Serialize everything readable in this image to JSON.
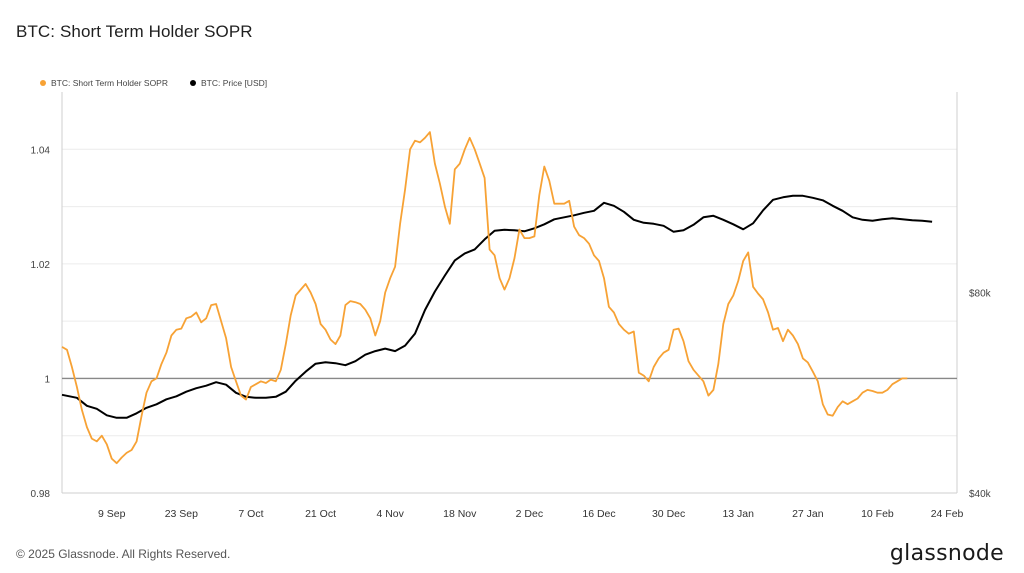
{
  "title": "BTC: Short Term Holder SOPR",
  "footer": "© 2025 Glassnode. All Rights Reserved.",
  "brand": "glassnode",
  "colors": {
    "sopr": "#f7a235",
    "price": "#000000",
    "baseline": "#888888",
    "grid": "#ececec",
    "axis": "#cfcfcf"
  },
  "chart_data": {
    "type": "line",
    "legend": [
      {
        "name": "BTC: Short Term Holder SOPR",
        "color": "#f7a235"
      },
      {
        "name": "BTC: Price [USD]",
        "color": "#000000"
      }
    ],
    "legend_position": "top-left",
    "x_ticks": [
      "9 Sep",
      "23 Sep",
      "7 Oct",
      "21 Oct",
      "4 Nov",
      "18 Nov",
      "2 Dec",
      "16 Dec",
      "30 Dec",
      "13 Jan",
      "27 Jan",
      "10 Feb",
      "24 Feb"
    ],
    "x_range": [
      "2024-08-30",
      "2025-02-26"
    ],
    "y_left": {
      "ticks": [
        "0.98",
        "1",
        "1.02",
        "1.04"
      ],
      "values": [
        0.98,
        1.0,
        1.02,
        1.04
      ],
      "range": [
        0.98,
        1.05
      ]
    },
    "y_right": {
      "ticks": [
        "$40k",
        "$80k"
      ],
      "values": [
        40000,
        80000
      ],
      "range": [
        40000,
        120000
      ]
    },
    "baseline": 1.0,
    "grid": true,
    "series": [
      {
        "name": "BTC: Short Term Holder SOPR",
        "axis": "left",
        "points": [
          [
            "2024-08-30",
            1.0055
          ],
          [
            "2024-08-31",
            1.005
          ],
          [
            "2024-09-01",
            1.002
          ],
          [
            "2024-09-02",
            0.9985
          ],
          [
            "2024-09-03",
            0.9945
          ],
          [
            "2024-09-04",
            0.9915
          ],
          [
            "2024-09-05",
            0.9895
          ],
          [
            "2024-09-06",
            0.989
          ],
          [
            "2024-09-07",
            0.99
          ],
          [
            "2024-09-08",
            0.9885
          ],
          [
            "2024-09-09",
            0.986
          ],
          [
            "2024-09-10",
            0.9852
          ],
          [
            "2024-09-11",
            0.9862
          ],
          [
            "2024-09-12",
            0.987
          ],
          [
            "2024-09-13",
            0.9875
          ],
          [
            "2024-09-14",
            0.989
          ],
          [
            "2024-09-15",
            0.9935
          ],
          [
            "2024-09-16",
            0.9975
          ],
          [
            "2024-09-17",
            0.9995
          ],
          [
            "2024-09-18",
            1.0
          ],
          [
            "2024-09-19",
            1.0025
          ],
          [
            "2024-09-20",
            1.0045
          ],
          [
            "2024-09-21",
            1.0075
          ],
          [
            "2024-09-22",
            1.0085
          ],
          [
            "2024-09-23",
            1.0087
          ],
          [
            "2024-09-24",
            1.0105
          ],
          [
            "2024-09-25",
            1.0108
          ],
          [
            "2024-09-26",
            1.0115
          ],
          [
            "2024-09-27",
            1.0098
          ],
          [
            "2024-09-28",
            1.0105
          ],
          [
            "2024-09-29",
            1.0128
          ],
          [
            "2024-09-30",
            1.013
          ],
          [
            "2024-10-01",
            1.01
          ],
          [
            "2024-10-02",
            1.007
          ],
          [
            "2024-10-03",
            1.002
          ],
          [
            "2024-10-04",
            0.9995
          ],
          [
            "2024-10-05",
            0.997
          ],
          [
            "2024-10-06",
            0.9963
          ],
          [
            "2024-10-07",
            0.9985
          ],
          [
            "2024-10-08",
            0.999
          ],
          [
            "2024-10-09",
            0.9995
          ],
          [
            "2024-10-10",
            0.9992
          ],
          [
            "2024-10-11",
            0.9998
          ],
          [
            "2024-10-12",
            0.9995
          ],
          [
            "2024-10-13",
            1.0015
          ],
          [
            "2024-10-14",
            1.006
          ],
          [
            "2024-10-15",
            1.011
          ],
          [
            "2024-10-16",
            1.0145
          ],
          [
            "2024-10-17",
            1.0155
          ],
          [
            "2024-10-18",
            1.0165
          ],
          [
            "2024-10-19",
            1.015
          ],
          [
            "2024-10-20",
            1.013
          ],
          [
            "2024-10-21",
            1.0095
          ],
          [
            "2024-10-22",
            1.0085
          ],
          [
            "2024-10-23",
            1.0068
          ],
          [
            "2024-10-24",
            1.006
          ],
          [
            "2024-10-25",
            1.0075
          ],
          [
            "2024-10-26",
            1.0128
          ],
          [
            "2024-10-27",
            1.0135
          ],
          [
            "2024-10-28",
            1.0133
          ],
          [
            "2024-10-29",
            1.013
          ],
          [
            "2024-10-30",
            1.012
          ],
          [
            "2024-10-31",
            1.0105
          ],
          [
            "2024-11-01",
            1.0075
          ],
          [
            "2024-11-02",
            1.01
          ],
          [
            "2024-11-03",
            1.015
          ],
          [
            "2024-11-04",
            1.0175
          ],
          [
            "2024-11-05",
            1.0195
          ],
          [
            "2024-11-06",
            1.027
          ],
          [
            "2024-11-07",
            1.033
          ],
          [
            "2024-11-08",
            1.04
          ],
          [
            "2024-11-09",
            1.0415
          ],
          [
            "2024-11-10",
            1.0412
          ],
          [
            "2024-11-11",
            1.042
          ],
          [
            "2024-11-12",
            1.043
          ],
          [
            "2024-11-13",
            1.0375
          ],
          [
            "2024-11-14",
            1.034
          ],
          [
            "2024-11-15",
            1.03
          ],
          [
            "2024-11-16",
            1.027
          ],
          [
            "2024-11-17",
            1.0365
          ],
          [
            "2024-11-18",
            1.0375
          ],
          [
            "2024-11-19",
            1.04
          ],
          [
            "2024-11-20",
            1.042
          ],
          [
            "2024-11-21",
            1.04
          ],
          [
            "2024-11-22",
            1.0375
          ],
          [
            "2024-11-23",
            1.035
          ],
          [
            "2024-11-24",
            1.0225
          ],
          [
            "2024-11-25",
            1.0215
          ],
          [
            "2024-11-26",
            1.0175
          ],
          [
            "2024-11-27",
            1.0155
          ],
          [
            "2024-11-28",
            1.0175
          ],
          [
            "2024-11-29",
            1.021
          ],
          [
            "2024-11-30",
            1.026
          ],
          [
            "2024-12-01",
            1.0245
          ],
          [
            "2024-12-02",
            1.0245
          ],
          [
            "2024-12-03",
            1.0248
          ],
          [
            "2024-12-04",
            1.032
          ],
          [
            "2024-12-05",
            1.037
          ],
          [
            "2024-12-06",
            1.0345
          ],
          [
            "2024-12-07",
            1.0305
          ],
          [
            "2024-12-08",
            1.0305
          ],
          [
            "2024-12-09",
            1.0305
          ],
          [
            "2024-12-10",
            1.031
          ],
          [
            "2024-12-11",
            1.0265
          ],
          [
            "2024-12-12",
            1.025
          ],
          [
            "2024-12-13",
            1.0245
          ],
          [
            "2024-12-14",
            1.0235
          ],
          [
            "2024-12-15",
            1.0215
          ],
          [
            "2024-12-16",
            1.0205
          ],
          [
            "2024-12-17",
            1.0175
          ],
          [
            "2024-12-18",
            1.0125
          ],
          [
            "2024-12-19",
            1.0115
          ],
          [
            "2024-12-20",
            1.0095
          ],
          [
            "2024-12-21",
            1.0085
          ],
          [
            "2024-12-22",
            1.0078
          ],
          [
            "2024-12-23",
            1.0082
          ],
          [
            "2024-12-24",
            1.001
          ],
          [
            "2024-12-25",
            1.0005
          ],
          [
            "2024-12-26",
            0.9995
          ],
          [
            "2024-12-27",
            1.002
          ],
          [
            "2024-12-28",
            1.0035
          ],
          [
            "2024-12-29",
            1.0045
          ],
          [
            "2024-12-30",
            1.005
          ],
          [
            "2024-12-31",
            1.0085
          ],
          [
            "2025-01-01",
            1.0087
          ],
          [
            "2025-01-02",
            1.0065
          ],
          [
            "2025-01-03",
            1.003
          ],
          [
            "2025-01-04",
            1.0015
          ],
          [
            "2025-01-05",
            1.0005
          ],
          [
            "2025-01-06",
            0.9995
          ],
          [
            "2025-01-07",
            0.997
          ],
          [
            "2025-01-08",
            0.998
          ],
          [
            "2025-01-09",
            1.0025
          ],
          [
            "2025-01-10",
            1.0095
          ],
          [
            "2025-01-11",
            1.013
          ],
          [
            "2025-01-12",
            1.0145
          ],
          [
            "2025-01-13",
            1.017
          ],
          [
            "2025-01-14",
            1.0205
          ],
          [
            "2025-01-15",
            1.022
          ],
          [
            "2025-01-16",
            1.016
          ],
          [
            "2025-01-17",
            1.0148
          ],
          [
            "2025-01-18",
            1.0138
          ],
          [
            "2025-01-19",
            1.0115
          ],
          [
            "2025-01-20",
            1.0085
          ],
          [
            "2025-01-21",
            1.0088
          ],
          [
            "2025-01-22",
            1.0065
          ],
          [
            "2025-01-23",
            1.0085
          ],
          [
            "2025-01-24",
            1.0075
          ],
          [
            "2025-01-25",
            1.006
          ],
          [
            "2025-01-26",
            1.0035
          ],
          [
            "2025-01-27",
            1.0028
          ],
          [
            "2025-01-28",
            1.0012
          ],
          [
            "2025-01-29",
            0.9995
          ],
          [
            "2025-01-30",
            0.9955
          ],
          [
            "2025-01-31",
            0.9937
          ],
          [
            "2025-02-01",
            0.9935
          ],
          [
            "2025-02-02",
            0.995
          ],
          [
            "2025-02-03",
            0.996
          ],
          [
            "2025-02-04",
            0.9955
          ],
          [
            "2025-02-05",
            0.996
          ],
          [
            "2025-02-06",
            0.9965
          ],
          [
            "2025-02-07",
            0.9975
          ],
          [
            "2025-02-08",
            0.998
          ],
          [
            "2025-02-09",
            0.9978
          ],
          [
            "2025-02-10",
            0.9975
          ],
          [
            "2025-02-11",
            0.9975
          ],
          [
            "2025-02-12",
            0.998
          ],
          [
            "2025-02-13",
            0.999
          ],
          [
            "2025-02-14",
            0.9995
          ],
          [
            "2025-02-15",
            1.0
          ],
          [
            "2025-02-16",
            1.0
          ]
        ]
      },
      {
        "name": "BTC: Price [USD]",
        "axis": "right",
        "points": [
          [
            "2024-08-30",
            59600
          ],
          [
            "2024-09-02",
            59000
          ],
          [
            "2024-09-04",
            57400
          ],
          [
            "2024-09-06",
            56800
          ],
          [
            "2024-09-08",
            55500
          ],
          [
            "2024-09-10",
            55000
          ],
          [
            "2024-09-12",
            55000
          ],
          [
            "2024-09-14",
            55900
          ],
          [
            "2024-09-16",
            57000
          ],
          [
            "2024-09-18",
            57700
          ],
          [
            "2024-09-20",
            58700
          ],
          [
            "2024-09-22",
            59300
          ],
          [
            "2024-09-24",
            60200
          ],
          [
            "2024-09-26",
            60900
          ],
          [
            "2024-09-28",
            61400
          ],
          [
            "2024-09-30",
            62100
          ],
          [
            "2024-10-02",
            61600
          ],
          [
            "2024-10-04",
            60000
          ],
          [
            "2024-10-06",
            59200
          ],
          [
            "2024-10-08",
            59000
          ],
          [
            "2024-10-10",
            59000
          ],
          [
            "2024-10-12",
            59200
          ],
          [
            "2024-10-14",
            60200
          ],
          [
            "2024-10-16",
            62400
          ],
          [
            "2024-10-18",
            64200
          ],
          [
            "2024-10-20",
            65800
          ],
          [
            "2024-10-22",
            66100
          ],
          [
            "2024-10-24",
            65900
          ],
          [
            "2024-10-26",
            65500
          ],
          [
            "2024-10-28",
            66300
          ],
          [
            "2024-10-30",
            67600
          ],
          [
            "2024-11-01",
            68300
          ],
          [
            "2024-11-03",
            68800
          ],
          [
            "2024-11-05",
            68300
          ],
          [
            "2024-11-07",
            69400
          ],
          [
            "2024-11-09",
            71800
          ],
          [
            "2024-11-11",
            76500
          ],
          [
            "2024-11-13",
            80200
          ],
          [
            "2024-11-15",
            83400
          ],
          [
            "2024-11-17",
            86400
          ],
          [
            "2024-11-19",
            87800
          ],
          [
            "2024-11-21",
            88600
          ],
          [
            "2024-11-23",
            90600
          ],
          [
            "2024-11-25",
            92300
          ],
          [
            "2024-11-27",
            92500
          ],
          [
            "2024-11-29",
            92400
          ],
          [
            "2024-12-01",
            92200
          ],
          [
            "2024-12-03",
            92800
          ],
          [
            "2024-12-05",
            93600
          ],
          [
            "2024-12-07",
            94600
          ],
          [
            "2024-12-09",
            95000
          ],
          [
            "2024-12-11",
            95400
          ],
          [
            "2024-12-13",
            95900
          ],
          [
            "2024-12-15",
            96300
          ],
          [
            "2024-12-17",
            97900
          ],
          [
            "2024-12-19",
            97300
          ],
          [
            "2024-12-21",
            96100
          ],
          [
            "2024-12-23",
            94500
          ],
          [
            "2024-12-25",
            93900
          ],
          [
            "2024-12-27",
            93700
          ],
          [
            "2024-12-29",
            93300
          ],
          [
            "2024-12-31",
            92100
          ],
          [
            "2025-01-02",
            92400
          ],
          [
            "2025-01-04",
            93500
          ],
          [
            "2025-01-06",
            95000
          ],
          [
            "2025-01-08",
            95300
          ],
          [
            "2025-01-10",
            94500
          ],
          [
            "2025-01-12",
            93600
          ],
          [
            "2025-01-14",
            92600
          ],
          [
            "2025-01-16",
            93800
          ],
          [
            "2025-01-18",
            96400
          ],
          [
            "2025-01-20",
            98500
          ],
          [
            "2025-01-22",
            99000
          ],
          [
            "2025-01-24",
            99300
          ],
          [
            "2025-01-26",
            99300
          ],
          [
            "2025-01-28",
            98900
          ],
          [
            "2025-01-30",
            98400
          ],
          [
            "2025-02-01",
            97300
          ],
          [
            "2025-02-03",
            96300
          ],
          [
            "2025-02-05",
            95000
          ],
          [
            "2025-02-07",
            94500
          ],
          [
            "2025-02-09",
            94300
          ],
          [
            "2025-02-11",
            94600
          ],
          [
            "2025-02-13",
            94800
          ],
          [
            "2025-02-15",
            94600
          ],
          [
            "2025-02-17",
            94400
          ],
          [
            "2025-02-19",
            94300
          ],
          [
            "2025-02-21",
            94100
          ]
        ]
      }
    ]
  }
}
